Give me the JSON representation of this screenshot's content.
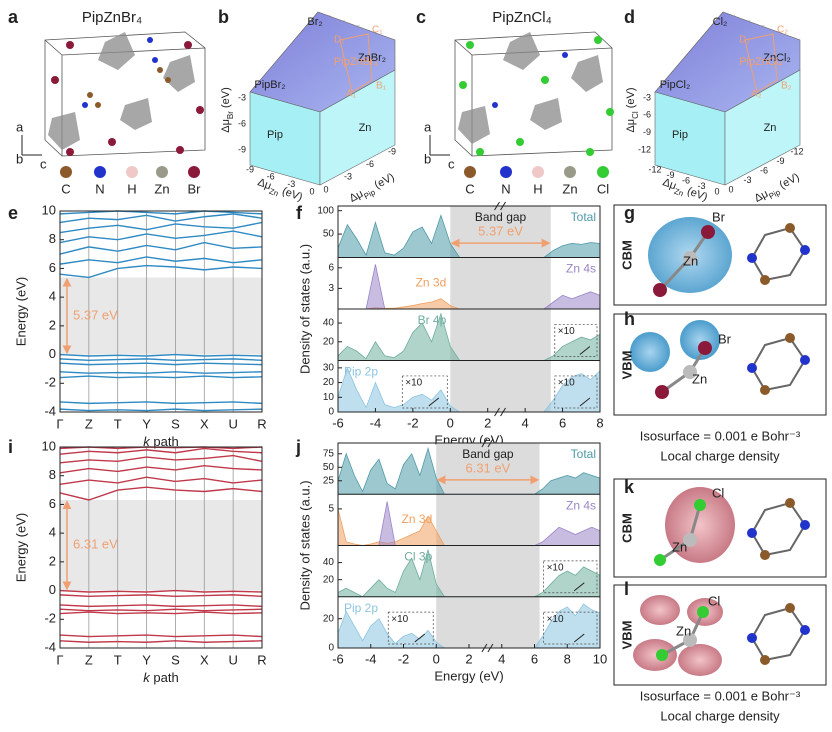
{
  "figure": {
    "panel_labels": [
      "a",
      "b",
      "c",
      "d",
      "e",
      "f",
      "g",
      "h",
      "i",
      "j",
      "k",
      "l"
    ],
    "a": {
      "title": "PipZnBr₄",
      "axes": [
        "a",
        "b",
        "c"
      ],
      "atoms": [
        "C",
        "N",
        "H",
        "Zn",
        "Br"
      ]
    },
    "b": {
      "regions": [
        "Br₂",
        "ZnBr₂",
        "PipBr₂",
        "Pip",
        "Zn"
      ],
      "compound": "PipZnBr₄",
      "points": [
        "A₁",
        "B₁",
        "C₁",
        "D₁"
      ],
      "axes": [
        {
          "main": "Δμ",
          "sub": "Br",
          "unit": " (eV)",
          "ticks": [
            -3,
            -6,
            -9
          ]
        },
        {
          "main": "Δμ",
          "sub": "Zn",
          "unit": " (eV)",
          "ticks": [
            -9,
            -6,
            -3,
            0
          ]
        },
        {
          "main": "Δμ",
          "sub": "Pip",
          "unit": " (eV)",
          "ticks": [
            0,
            -3,
            -6,
            -9
          ]
        }
      ]
    },
    "c": {
      "title": "PipZnCl₄",
      "axes": [
        "a",
        "b",
        "c"
      ],
      "atoms": [
        "C",
        "N",
        "H",
        "Zn",
        "Cl"
      ]
    },
    "d": {
      "regions": [
        "Cl₂",
        "ZnCl₂",
        "PipCl₂",
        "Pip",
        "Zn"
      ],
      "compound": "PipZnCl₄",
      "points": [
        "A₂",
        "B₂",
        "C₂",
        "D₂"
      ],
      "axes": [
        {
          "main": "Δμ",
          "sub": "Cl",
          "unit": " (eV)",
          "ticks": [
            -3,
            -6,
            -9,
            -12
          ]
        },
        {
          "main": "Δμ",
          "sub": "Zn",
          "unit": " (eV)",
          "ticks": [
            -12,
            -9,
            -6,
            -3,
            0
          ]
        },
        {
          "main": "Δμ",
          "sub": "Pip",
          "unit": " (eV)",
          "ticks": [
            0,
            -3,
            -6,
            -9,
            -12
          ]
        }
      ]
    },
    "g": {
      "state": "CBM",
      "atoms": [
        "Zn",
        "Br"
      ]
    },
    "h": {
      "state": "VBM",
      "atoms": [
        "Zn",
        "Br"
      ]
    },
    "gh_caption": [
      "Isosurface = 0.001 e Bohr⁻³",
      "Local charge density"
    ],
    "k": {
      "state": "CBM",
      "atoms": [
        "Zn",
        "Cl"
      ]
    },
    "l": {
      "state": "VBM",
      "atoms": [
        "Zn",
        "Cl"
      ]
    },
    "kl_caption": [
      "Isosurface = 0.001 e Bohr⁻³",
      "Local charge density"
    ]
  },
  "chart_data": [
    {
      "type": "band",
      "ylabel": "Energy (eV)",
      "xlabel_italic": "k",
      "xlabel": " path",
      "categories": [
        "Γ",
        "Z",
        "T",
        "Y",
        "S",
        "X",
        "U",
        "R"
      ],
      "ylim": [
        -4,
        10
      ],
      "yticks": [
        -4,
        -2,
        0,
        2,
        4,
        6,
        8,
        10
      ],
      "band_gap": 5.37,
      "band_gap_label": "5.37 eV",
      "color": "#2f8ac4",
      "series": [
        {
          "values": [
            0,
            -0.1,
            -0.05,
            -0.1,
            0,
            -0.1,
            -0.05,
            -0.1
          ]
        },
        {
          "values": [
            -0.3,
            -0.4,
            -0.35,
            -0.3,
            -0.4,
            -0.35,
            -0.3,
            -0.4
          ]
        },
        {
          "values": [
            -0.6,
            -0.7,
            -0.65,
            -0.6,
            -0.7,
            -0.6,
            -0.65,
            -0.7
          ]
        },
        {
          "values": [
            -1.2,
            -1.3,
            -1.25,
            -1.3,
            -1.2,
            -1.3,
            -1.25,
            -1.2
          ]
        },
        {
          "values": [
            -1.6,
            -1.5,
            -1.6,
            -1.55,
            -1.6,
            -1.5,
            -1.6,
            -1.55
          ]
        },
        {
          "values": [
            -3.3,
            -3.4,
            -3.35,
            -3.3,
            -3.4,
            -3.35,
            -3.3,
            -3.4
          ]
        },
        {
          "values": [
            -3.8,
            -3.9,
            -3.85,
            -3.9,
            -3.8,
            -3.9,
            -3.85,
            -3.8
          ]
        },
        {
          "values": [
            5.6,
            5.37,
            6.0,
            6.2,
            6.1,
            5.9,
            6.1,
            6.0
          ]
        },
        {
          "values": [
            6.3,
            6.6,
            6.4,
            6.8,
            6.5,
            6.7,
            6.4,
            6.6
          ]
        },
        {
          "values": [
            7.0,
            7.5,
            7.2,
            7.6,
            7.3,
            7.8,
            7.4,
            7.5
          ]
        },
        {
          "values": [
            7.8,
            8.2,
            8.0,
            8.4,
            8.1,
            8.3,
            8.6,
            8.2
          ]
        },
        {
          "values": [
            8.5,
            8.8,
            9.0,
            8.7,
            9.1,
            8.9,
            8.8,
            9.2
          ]
        },
        {
          "values": [
            9.2,
            9.5,
            9.4,
            9.7,
            9.3,
            9.6,
            9.8,
            9.5
          ]
        },
        {
          "values": [
            9.8,
            9.9,
            10.0,
            9.9,
            9.8,
            10.0,
            9.9,
            9.8
          ]
        }
      ]
    },
    {
      "type": "dos",
      "ylabel": "Density of states (a.u.)",
      "xlabel": "Energy (eV)",
      "gap_title": "Band gap",
      "band_gap": 5.37,
      "band_gap_label": "5.37 eV",
      "xlim": [
        -6,
        8
      ],
      "xticks": [
        -6,
        -4,
        -2,
        0,
        2,
        4,
        6,
        8
      ],
      "x": [
        -6,
        -5.5,
        -5,
        -4.5,
        -4,
        -3.5,
        -3,
        -2.5,
        -2,
        -1.5,
        -1,
        -0.5,
        0,
        0.5,
        1,
        1.5,
        2,
        2.5,
        3,
        3.5,
        4,
        4.5,
        5,
        5.5,
        6,
        6.5,
        7,
        7.5,
        8
      ],
      "panels": [
        {
          "ylim": [
            0,
            110
          ],
          "yticks": [
            50,
            100
          ],
          "series": [
            {
              "name": "Total",
              "color": "#4f9aa8",
              "values": [
                20,
                70,
                40,
                5,
                75,
                10,
                5,
                20,
                55,
                65,
                30,
                90,
                30,
                0,
                0,
                0,
                0,
                0,
                0,
                0,
                0,
                0,
                0,
                15,
                25,
                30,
                28,
                32,
                30
              ]
            }
          ]
        },
        {
          "ylim": [
            0,
            7.5
          ],
          "yticks": [
            3,
            6
          ],
          "series": [
            {
              "name": "Zn 3d",
              "color": "#f0a060",
              "values": [
                0,
                0,
                0,
                0,
                0.2,
                0.1,
                0.1,
                0.3,
                0.5,
                0.8,
                1,
                1.5,
                0.5,
                0,
                0,
                0,
                0,
                0,
                0,
                0,
                0,
                0,
                0,
                0,
                0,
                0,
                0,
                0,
                0
              ]
            },
            {
              "name": "Zn 4s",
              "color": "#9a85c8",
              "values": [
                0,
                0,
                0,
                0,
                6.5,
                0,
                0,
                0,
                0,
                0,
                0,
                0,
                0,
                0,
                0,
                0,
                0,
                0,
                0,
                0,
                0,
                0,
                0,
                1,
                2,
                1.5,
                2,
                2.5,
                2
              ]
            }
          ]
        },
        {
          "ylim": [
            0,
            55
          ],
          "yticks": [
            20,
            40
          ],
          "insets": [
            "×10"
          ],
          "series": [
            {
              "name": "Br 4p",
              "color": "#6fae9e",
              "values": [
                5,
                15,
                10,
                2,
                20,
                5,
                3,
                10,
                30,
                40,
                20,
                50,
                15,
                0,
                0,
                0,
                0,
                0,
                0,
                0,
                0,
                0,
                0,
                5,
                15,
                20,
                25,
                22,
                28
              ]
            }
          ]
        },
        {
          "ylim": [
            0,
            35
          ],
          "yticks": [
            0,
            10,
            20,
            30
          ],
          "insets": [
            "×10",
            "×10"
          ],
          "series": [
            {
              "name": "Pip 2p",
              "color": "#8cc4e0",
              "values": [
                10,
                30,
                15,
                3,
                20,
                5,
                3,
                5,
                10,
                12,
                8,
                15,
                4,
                0,
                0,
                0,
                0,
                0,
                0,
                0,
                0,
                0,
                0,
                8,
                18,
                24,
                26,
                22,
                28
              ]
            }
          ]
        }
      ]
    },
    {
      "type": "band",
      "ylabel": "Energy (eV)",
      "xlabel_italic": "k",
      "xlabel": " path",
      "categories": [
        "Γ",
        "Z",
        "T",
        "Y",
        "S",
        "X",
        "U",
        "R"
      ],
      "ylim": [
        -4,
        10
      ],
      "yticks": [
        -4,
        -2,
        0,
        2,
        4,
        6,
        8,
        10
      ],
      "band_gap": 6.31,
      "band_gap_label": "6.31 eV",
      "color": "#c0394b",
      "series": [
        {
          "values": [
            0,
            -0.1,
            -0.05,
            -0.1,
            0,
            -0.1,
            -0.05,
            -0.1
          ]
        },
        {
          "values": [
            -0.3,
            -0.4,
            -0.35,
            -0.3,
            -0.4,
            -0.35,
            -0.3,
            -0.4
          ]
        },
        {
          "values": [
            -1.0,
            -1.1,
            -1.05,
            -1.0,
            -1.1,
            -1.05,
            -1.0,
            -1.1
          ]
        },
        {
          "values": [
            -1.3,
            -1.4,
            -1.35,
            -1.4,
            -1.3,
            -1.4,
            -1.35,
            -1.3
          ]
        },
        {
          "values": [
            -1.6,
            -1.5,
            -1.6,
            -1.55,
            -1.6,
            -1.5,
            -1.6,
            -1.55
          ]
        },
        {
          "values": [
            -3.1,
            -3.2,
            -3.15,
            -3.1,
            -3.2,
            -3.15,
            -3.1,
            -3.2
          ]
        },
        {
          "values": [
            -3.5,
            -3.6,
            -3.55,
            -3.6,
            -3.5,
            -3.6,
            -3.55,
            -3.5
          ]
        },
        {
          "values": [
            6.8,
            6.31,
            7.0,
            7.2,
            7.0,
            6.9,
            7.1,
            6.9
          ]
        },
        {
          "values": [
            7.4,
            7.7,
            7.5,
            7.9,
            7.6,
            7.8,
            7.5,
            7.7
          ]
        },
        {
          "values": [
            8.2,
            8.5,
            8.3,
            8.6,
            8.4,
            8.7,
            8.5,
            8.4
          ]
        },
        {
          "values": [
            8.9,
            9.1,
            9.0,
            9.3,
            9.1,
            9.2,
            9.4,
            9.0
          ]
        },
        {
          "values": [
            9.5,
            9.7,
            9.6,
            9.8,
            9.6,
            9.9,
            9.7,
            9.6
          ]
        },
        {
          "values": [
            9.9,
            10.0,
            9.9,
            10.0,
            9.95,
            10.0,
            9.9,
            10.0
          ]
        }
      ]
    },
    {
      "type": "dos",
      "ylabel": "Density of states (a.u.)",
      "xlabel": "Energy (eV)",
      "gap_title": "Band gap",
      "band_gap": 6.31,
      "band_gap_label": "6.31 eV",
      "xlim": [
        -6,
        10
      ],
      "xticks": [
        -6,
        -4,
        -2,
        0,
        2,
        4,
        6,
        8,
        10
      ],
      "x": [
        -6,
        -5.5,
        -5,
        -4.5,
        -4,
        -3.5,
        -3,
        -2.5,
        -2,
        -1.5,
        -1,
        -0.5,
        0,
        0.5,
        1,
        1.5,
        2,
        2.5,
        3,
        3.5,
        4,
        4.5,
        5,
        5.5,
        6,
        6.5,
        7,
        7.5,
        8,
        8.5,
        9,
        9.5,
        10
      ],
      "panels": [
        {
          "ylim": [
            0,
            95
          ],
          "yticks": [
            25,
            50,
            75
          ],
          "series": [
            {
              "name": "Total",
              "color": "#4f9aa8",
              "values": [
                25,
                75,
                35,
                5,
                45,
                65,
                20,
                10,
                55,
                75,
                35,
                85,
                30,
                0,
                0,
                0,
                0,
                0,
                0,
                0,
                0,
                0,
                0,
                0,
                0,
                10,
                25,
                30,
                35,
                30,
                40,
                35,
                30
              ]
            }
          ]
        },
        {
          "ylim": [
            0,
            7
          ],
          "yticks": [
            5
          ],
          "series": [
            {
              "name": "Zn 3d",
              "color": "#f0a060",
              "values": [
                5,
                0.5,
                0.2,
                0,
                0.2,
                0.5,
                0.3,
                0.5,
                1,
                1.5,
                2,
                4,
                2,
                0,
                0,
                0,
                0,
                0,
                0,
                0,
                0,
                0,
                0,
                0,
                0,
                0,
                0,
                0,
                0,
                0,
                0,
                0,
                0
              ]
            },
            {
              "name": "Zn 4s",
              "color": "#9a85c8",
              "values": [
                0,
                0,
                0,
                0,
                0,
                0,
                6,
                0,
                0,
                0,
                0,
                0,
                0,
                0,
                0,
                0,
                0,
                0,
                0,
                0,
                0,
                0,
                0,
                0,
                0,
                0.5,
                1.5,
                2.5,
                2,
                1.5,
                2,
                2.5,
                2
              ]
            }
          ]
        },
        {
          "ylim": [
            0,
            60
          ],
          "yticks": [
            20,
            40
          ],
          "insets": [
            "×10"
          ],
          "series": [
            {
              "name": "Cl 3p",
              "color": "#6fae9e",
              "values": [
                5,
                10,
                5,
                0,
                10,
                20,
                10,
                5,
                30,
                45,
                20,
                55,
                15,
                0,
                0,
                0,
                0,
                0,
                0,
                0,
                0,
                0,
                0,
                0,
                0,
                5,
                15,
                25,
                30,
                25,
                35,
                30,
                25
              ]
            }
          ]
        },
        {
          "ylim": [
            0,
            35
          ],
          "yticks": [
            0,
            20
          ],
          "insets": [
            "×10",
            "×10"
          ],
          "series": [
            {
              "name": "Pip 2p",
              "color": "#8cc4e0",
              "values": [
                10,
                25,
                15,
                5,
                15,
                20,
                10,
                3,
                8,
                10,
                6,
                12,
                4,
                0,
                0,
                0,
                0,
                0,
                0,
                0,
                0,
                0,
                0,
                0,
                0,
                8,
                18,
                25,
                28,
                22,
                30,
                26,
                24
              ]
            }
          ]
        }
      ]
    }
  ]
}
